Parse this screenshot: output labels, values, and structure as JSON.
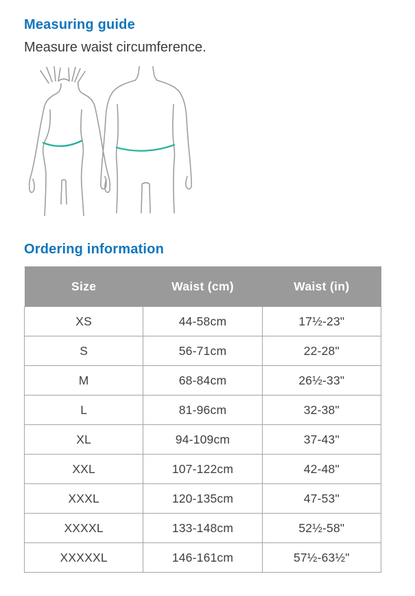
{
  "measuring_guide": {
    "title": "Measuring guide",
    "subtitle": "Measure waist circumference."
  },
  "illustration": {
    "name": "waist-measurement-figures",
    "figures": [
      "female-back-view-figure",
      "male-back-view-figure"
    ],
    "waist_line": "waist-measurement-line"
  },
  "ordering_information": {
    "title": "Ordering information"
  },
  "table": {
    "columns": [
      "Size",
      "Waist (cm)",
      "Waist (in)"
    ],
    "rows": [
      [
        "XS",
        "44-58cm",
        "17½-23\""
      ],
      [
        "S",
        "56-71cm",
        "22-28\""
      ],
      [
        "M",
        "68-84cm",
        "26½-33\""
      ],
      [
        "L",
        "81-96cm",
        "32-38\""
      ],
      [
        "XL",
        "94-109cm",
        "37-43\""
      ],
      [
        "XXL",
        "107-122cm",
        "42-48\""
      ],
      [
        "XXXL",
        "120-135cm",
        "47-53\""
      ],
      [
        "XXXXL",
        "133-148cm",
        "52½-58\""
      ],
      [
        "XXXXXL",
        "146-161cm",
        "57½-63½\""
      ]
    ]
  },
  "colors": {
    "heading_blue": "#0f76bc",
    "body_text": "#3c3c3e",
    "table_header_bg": "#9a9a9a",
    "table_header_text": "#ffffff",
    "table_border": "#a5a5a5",
    "figure_outline": "#9e9e9e",
    "waist_line_teal": "#2bb59d"
  }
}
